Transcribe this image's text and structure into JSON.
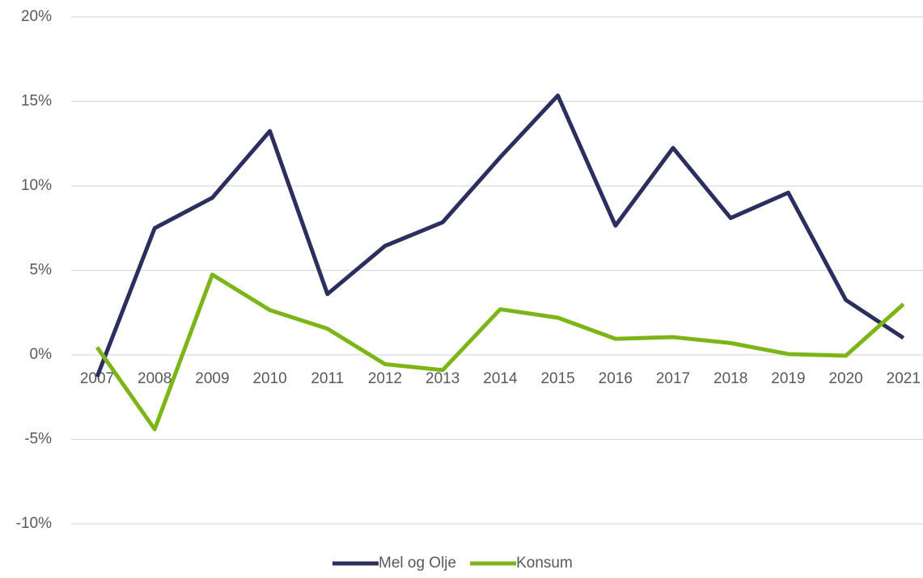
{
  "chart_data": {
    "type": "line",
    "categories": [
      "2007",
      "2008",
      "2009",
      "2010",
      "2011",
      "2012",
      "2013",
      "2014",
      "2015",
      "2016",
      "2017",
      "2018",
      "2019",
      "2020",
      "2021"
    ],
    "series": [
      {
        "name": "Mel og Olje",
        "color": "#2b2e5e",
        "values": [
          -1.3,
          7.5,
          9.3,
          13.25,
          3.6,
          6.45,
          7.85,
          11.7,
          15.35,
          7.65,
          12.25,
          8.1,
          9.6,
          3.25,
          1.0
        ]
      },
      {
        "name": "Konsum",
        "color": "#7cb518",
        "values": [
          0.45,
          -4.4,
          4.75,
          2.65,
          1.55,
          -0.55,
          -0.9,
          2.7,
          2.2,
          0.95,
          1.05,
          0.7,
          0.05,
          -0.05,
          3.0
        ]
      }
    ],
    "ylim": [
      -10,
      20
    ],
    "yticks": [
      {
        "value": -10,
        "label": "-10%"
      },
      {
        "value": -5,
        "label": "-5%"
      },
      {
        "value": 0,
        "label": "0%"
      },
      {
        "value": 5,
        "label": "5%"
      },
      {
        "value": 10,
        "label": "10%"
      },
      {
        "value": 15,
        "label": "15%"
      },
      {
        "value": 20,
        "label": "20%"
      }
    ],
    "grid": true,
    "legend": "bottom"
  }
}
